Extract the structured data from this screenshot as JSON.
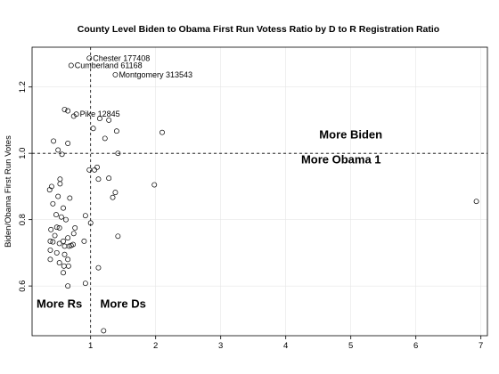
{
  "chart_data": {
    "type": "scatter",
    "title": "County Level Biden to Obama First Run Votess Ratio by D to R Registration Ratio",
    "xlabel": "",
    "ylabel": "Biden/Obama First Run Votes",
    "xlim": [
      0.1,
      7.1
    ],
    "ylim": [
      0.45,
      1.32
    ],
    "x_ticks": [
      1,
      2,
      3,
      4,
      5,
      6,
      7
    ],
    "y_ticks": [
      0.6,
      0.8,
      1.0,
      1.2
    ],
    "x_tick_labels": [
      "1",
      "2",
      "3",
      "4",
      "5",
      "6",
      "7"
    ],
    "y_tick_labels": [
      "0.6",
      "0.8",
      "1.0",
      "1.2"
    ],
    "grid": true,
    "reference_lines": {
      "vertical_x": 1,
      "horizontal_y": 1
    },
    "annotations": [
      {
        "x": 0.98,
        "y": 1.287,
        "text": "Chester 177408"
      },
      {
        "x": 0.7,
        "y": 1.265,
        "text": "Cumberland 61168"
      },
      {
        "x": 1.38,
        "y": 1.237,
        "text": "Montgomery 313543"
      },
      {
        "x": 0.78,
        "y": 1.118,
        "text": "Pike 12845"
      }
    ],
    "region_labels": [
      {
        "text": "More Biden",
        "x": 5.0,
        "y": 1.045
      },
      {
        "text": "More Obama 1",
        "x": 4.85,
        "y": 0.97
      },
      {
        "text": "More Rs",
        "x": 0.52,
        "y": 0.535
      },
      {
        "text": "More Ds",
        "x": 1.5,
        "y": 0.535
      }
    ],
    "points": [
      [
        0.98,
        1.287
      ],
      [
        0.7,
        1.265
      ],
      [
        1.38,
        1.237
      ],
      [
        0.78,
        1.118
      ],
      [
        0.74,
        1.112
      ],
      [
        0.6,
        1.132
      ],
      [
        0.65,
        1.128
      ],
      [
        1.14,
        1.105
      ],
      [
        1.28,
        1.1
      ],
      [
        2.1,
        1.063
      ],
      [
        1.04,
        1.075
      ],
      [
        1.4,
        1.067
      ],
      [
        1.22,
        1.045
      ],
      [
        0.43,
        1.037
      ],
      [
        0.65,
        1.03
      ],
      [
        0.5,
        1.01
      ],
      [
        0.56,
        0.997
      ],
      [
        1.42,
        1.0
      ],
      [
        0.98,
        0.95
      ],
      [
        1.06,
        0.95
      ],
      [
        1.1,
        0.958
      ],
      [
        1.28,
        0.925
      ],
      [
        1.12,
        0.922
      ],
      [
        1.38,
        0.882
      ],
      [
        1.34,
        0.867
      ],
      [
        1.98,
        0.905
      ],
      [
        6.93,
        0.855
      ],
      [
        0.53,
        0.922
      ],
      [
        0.53,
        0.908
      ],
      [
        0.4,
        0.9
      ],
      [
        0.37,
        0.89
      ],
      [
        0.5,
        0.87
      ],
      [
        0.68,
        0.865
      ],
      [
        0.42,
        0.848
      ],
      [
        0.58,
        0.835
      ],
      [
        0.47,
        0.815
      ],
      [
        0.55,
        0.808
      ],
      [
        0.62,
        0.8
      ],
      [
        0.92,
        0.812
      ],
      [
        1.0,
        0.79
      ],
      [
        0.48,
        0.777
      ],
      [
        0.52,
        0.775
      ],
      [
        0.39,
        0.77
      ],
      [
        0.76,
        0.775
      ],
      [
        0.45,
        0.752
      ],
      [
        0.74,
        0.758
      ],
      [
        0.65,
        0.745
      ],
      [
        1.42,
        0.75
      ],
      [
        0.38,
        0.735
      ],
      [
        0.42,
        0.733
      ],
      [
        0.52,
        0.728
      ],
      [
        0.58,
        0.735
      ],
      [
        0.6,
        0.72
      ],
      [
        0.67,
        0.72
      ],
      [
        0.7,
        0.722
      ],
      [
        0.9,
        0.735
      ],
      [
        0.73,
        0.725
      ],
      [
        0.38,
        0.708
      ],
      [
        0.48,
        0.7
      ],
      [
        0.6,
        0.695
      ],
      [
        0.65,
        0.68
      ],
      [
        0.38,
        0.68
      ],
      [
        0.52,
        0.67
      ],
      [
        0.59,
        0.66
      ],
      [
        0.66,
        0.66
      ],
      [
        0.58,
        0.64
      ],
      [
        1.12,
        0.655
      ],
      [
        0.92,
        0.608
      ],
      [
        0.65,
        0.6
      ],
      [
        1.2,
        0.465
      ]
    ]
  }
}
